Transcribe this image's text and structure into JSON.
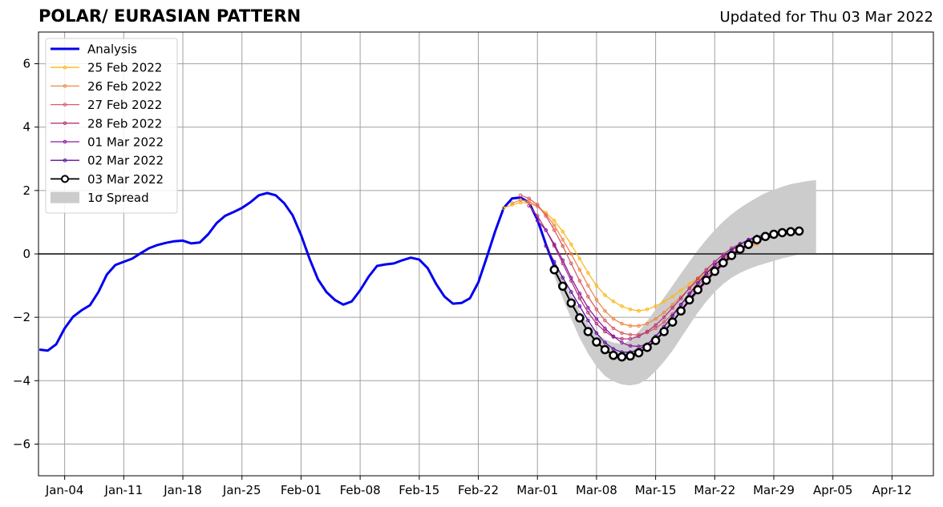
{
  "header": {
    "title": "POLAR/ EURASIAN  PATTERN",
    "updated": "Updated for Thu 03 Mar 2022"
  },
  "chart_data": {
    "type": "line",
    "title": "POLAR/ EURASIAN  PATTERN",
    "subtitle": "Updated for Thu 03 Mar 2022",
    "xlabel": "",
    "ylabel": "",
    "x_start": "2022-01-01",
    "xlim": [
      "2022-01-01",
      "2022-04-17"
    ],
    "ylim": [
      -7,
      7
    ],
    "x_ticks": [
      {
        "date": "2022-01-04",
        "label": "Jan-04"
      },
      {
        "date": "2022-01-11",
        "label": "Jan-11"
      },
      {
        "date": "2022-01-18",
        "label": "Jan-18"
      },
      {
        "date": "2022-01-25",
        "label": "Jan-25"
      },
      {
        "date": "2022-02-01",
        "label": "Feb-01"
      },
      {
        "date": "2022-02-08",
        "label": "Feb-08"
      },
      {
        "date": "2022-02-15",
        "label": "Feb-15"
      },
      {
        "date": "2022-02-22",
        "label": "Feb-22"
      },
      {
        "date": "2022-03-01",
        "label": "Mar-01"
      },
      {
        "date": "2022-03-08",
        "label": "Mar-08"
      },
      {
        "date": "2022-03-15",
        "label": "Mar-15"
      },
      {
        "date": "2022-03-22",
        "label": "Mar-22"
      },
      {
        "date": "2022-03-29",
        "label": "Mar-29"
      },
      {
        "date": "2022-04-05",
        "label": "Apr-05"
      },
      {
        "date": "2022-04-12",
        "label": "Apr-12"
      }
    ],
    "y_ticks": [
      {
        "value": 6,
        "label": "6"
      },
      {
        "value": 4,
        "label": "4"
      },
      {
        "value": 2,
        "label": "2"
      },
      {
        "value": 0,
        "label": "0"
      },
      {
        "value": -2,
        "label": "−2"
      },
      {
        "value": -4,
        "label": "−4"
      },
      {
        "value": -6,
        "label": "−6"
      }
    ],
    "grid": true,
    "legend_position": "top-left",
    "colors": {
      "analysis": "#0000ee",
      "feb25": "#fbb91f",
      "feb26": "#f0894a",
      "feb27": "#dc5d64",
      "feb28": "#b5367a",
      "mar01": "#8c1aa0",
      "mar02": "#5c0f9c",
      "mar03": "#000000",
      "spread": "#cccccc",
      "grid": "#a0a0a0"
    },
    "analysis": {
      "name": "Analysis",
      "start_date": "2022-01-01",
      "values": [
        -3.02,
        -3.05,
        -2.85,
        -2.35,
        -1.98,
        -1.78,
        -1.62,
        -1.2,
        -0.65,
        -0.35,
        -0.25,
        -0.15,
        0.02,
        0.18,
        0.28,
        0.35,
        0.4,
        0.42,
        0.33,
        0.36,
        0.62,
        0.97,
        1.2,
        1.32,
        1.45,
        1.63,
        1.85,
        1.92,
        1.85,
        1.6,
        1.22,
        0.6,
        -0.15,
        -0.8,
        -1.2,
        -1.45,
        -1.6,
        -1.5,
        -1.15,
        -0.72,
        -0.38,
        -0.33,
        -0.3,
        -0.2,
        -0.12,
        -0.18,
        -0.45,
        -0.95,
        -1.35,
        -1.57,
        -1.55,
        -1.4,
        -0.9,
        -0.1,
        0.72,
        1.45,
        1.75,
        1.78,
        1.62,
        1.08,
        0.3,
        -0.4
      ]
    },
    "forecasts": [
      {
        "name": "25 Feb 2022",
        "start_date": "2022-02-25",
        "values": [
          1.45,
          1.55,
          1.62,
          1.6,
          1.5,
          1.3,
          1.05,
          0.7,
          0.3,
          -0.15,
          -0.6,
          -1.0,
          -1.3,
          -1.5,
          -1.65,
          -1.75,
          -1.8,
          -1.75,
          -1.65,
          -1.5,
          -1.35,
          -1.15,
          -0.95,
          -0.75,
          -0.55,
          -0.35,
          -0.15,
          0.02,
          0.15,
          0.25,
          0.3
        ]
      },
      {
        "name": "26 Feb 2022",
        "start_date": "2022-02-26",
        "values": [
          1.6,
          1.7,
          1.65,
          1.5,
          1.25,
          0.9,
          0.45,
          0.0,
          -0.5,
          -1.0,
          -1.45,
          -1.8,
          -2.05,
          -2.2,
          -2.27,
          -2.27,
          -2.2,
          -2.05,
          -1.85,
          -1.6,
          -1.35,
          -1.1,
          -0.85,
          -0.6,
          -0.35,
          -0.15,
          0.02,
          0.15,
          0.25,
          0.33
        ]
      },
      {
        "name": "27 Feb 2022",
        "start_date": "2022-02-27",
        "values": [
          1.85,
          1.75,
          1.55,
          1.2,
          0.75,
          0.25,
          -0.3,
          -0.85,
          -1.35,
          -1.75,
          -2.1,
          -2.35,
          -2.5,
          -2.55,
          -2.55,
          -2.48,
          -2.35,
          -2.15,
          -1.9,
          -1.6,
          -1.3,
          -1.0,
          -0.72,
          -0.45,
          -0.2,
          0.02,
          0.18,
          0.3,
          0.38
        ]
      },
      {
        "name": "28 Feb 2022",
        "start_date": "2022-02-28",
        "values": [
          1.52,
          1.2,
          0.75,
          0.25,
          -0.3,
          -0.85,
          -1.4,
          -1.85,
          -2.2,
          -2.45,
          -2.62,
          -2.68,
          -2.68,
          -2.6,
          -2.45,
          -2.25,
          -2.0,
          -1.7,
          -1.4,
          -1.08,
          -0.78,
          -0.5,
          -0.25,
          -0.02,
          0.18,
          0.32,
          0.42,
          0.5
        ]
      },
      {
        "name": "01 Mar 2022",
        "start_date": "2022-03-01",
        "values": [
          1.05,
          0.75,
          0.3,
          -0.2,
          -0.75,
          -1.25,
          -1.7,
          -2.05,
          -2.35,
          -2.6,
          -2.8,
          -2.9,
          -2.92,
          -2.85,
          -2.68,
          -2.45,
          -2.15,
          -1.82,
          -1.5,
          -1.18,
          -0.88,
          -0.6,
          -0.33,
          -0.1,
          0.12,
          0.28,
          0.4,
          0.48,
          0.55
        ]
      },
      {
        "name": "02 Mar 2022",
        "start_date": "2022-03-02",
        "values": [
          0.25,
          -0.25,
          -0.75,
          -1.2,
          -1.65,
          -2.1,
          -2.5,
          -2.8,
          -3.0,
          -3.1,
          -3.1,
          -3.02,
          -2.85,
          -2.6,
          -2.3,
          -1.95,
          -1.6,
          -1.25,
          -0.92,
          -0.62,
          -0.35,
          -0.1,
          0.12,
          0.3,
          0.45,
          0.55,
          0.6,
          0.63
        ]
      },
      {
        "name": "03 Mar 2022",
        "start_date": "2022-03-03",
        "values": [
          -0.5,
          -1.02,
          -1.55,
          -2.02,
          -2.45,
          -2.78,
          -3.02,
          -3.2,
          -3.25,
          -3.22,
          -3.12,
          -2.95,
          -2.73,
          -2.45,
          -2.15,
          -1.8,
          -1.45,
          -1.13,
          -0.83,
          -0.55,
          -0.28,
          -0.05,
          0.15,
          0.3,
          0.45,
          0.55,
          0.62,
          0.67,
          0.7,
          0.72
        ]
      }
    ],
    "spread": {
      "name": "1σ Spread",
      "start_date": "2022-03-03",
      "upper": [
        -0.25,
        -0.8,
        -1.3,
        -1.8,
        -2.2,
        -2.5,
        -2.7,
        -2.8,
        -2.85,
        -2.72,
        -2.45,
        -2.12,
        -1.75,
        -1.38,
        -1.0,
        -0.62,
        -0.25,
        0.12,
        0.45,
        0.75,
        1.02,
        1.25,
        1.45,
        1.62,
        1.78,
        1.92,
        2.02,
        2.12,
        2.2,
        2.25,
        2.3,
        2.33
      ],
      "lower": [
        -0.7,
        -1.4,
        -2.05,
        -2.65,
        -3.15,
        -3.55,
        -3.85,
        -4.02,
        -4.12,
        -4.15,
        -4.1,
        -3.95,
        -3.7,
        -3.4,
        -3.05,
        -2.65,
        -2.25,
        -1.85,
        -1.5,
        -1.2,
        -0.95,
        -0.75,
        -0.6,
        -0.48,
        -0.38,
        -0.3,
        -0.22,
        -0.14,
        -0.08,
        -0.02,
        0.0,
        0.0
      ]
    },
    "legend": [
      "Analysis",
      "25 Feb 2022",
      "26 Feb 2022",
      "27 Feb 2022",
      "28 Feb 2022",
      "01 Mar 2022",
      "02 Mar 2022",
      "03 Mar 2022",
      "1σ Spread"
    ]
  }
}
